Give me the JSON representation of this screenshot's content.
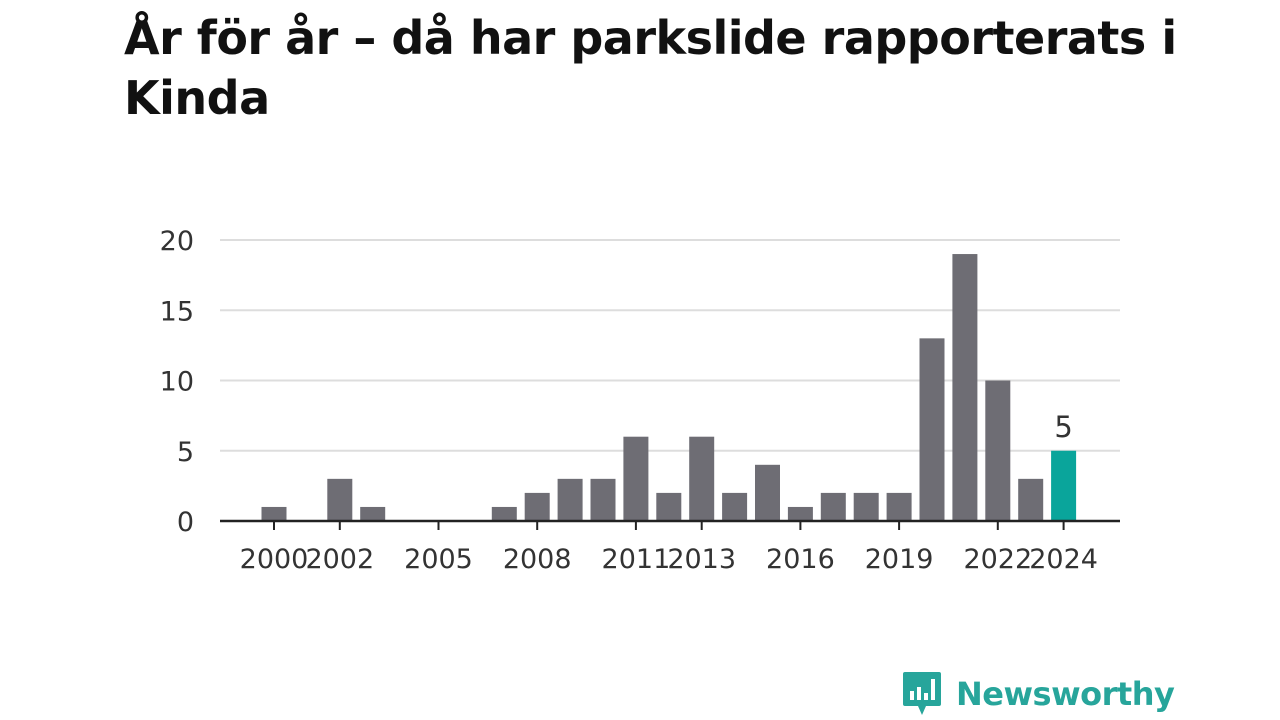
{
  "title": "År för år – då har parkslide rapporterats i Kinda",
  "brand": {
    "name": "Newsworthy",
    "icon": "bar-chart-speech-bubble-icon",
    "color": "#27a59b"
  },
  "colors": {
    "bar": "#6e6d74",
    "highlight": "#0aa59b",
    "grid": "#dddddd",
    "axis": "#222222",
    "text": "#333333"
  },
  "chart_data": {
    "type": "bar",
    "title": "År för år – då har parkslide rapporterats i Kinda",
    "xlabel": "",
    "ylabel": "",
    "categories": [
      "2000",
      "2001",
      "2002",
      "2003",
      "2004",
      "2005",
      "2006",
      "2007",
      "2008",
      "2009",
      "2010",
      "2011",
      "2012",
      "2013",
      "2014",
      "2015",
      "2016",
      "2017",
      "2018",
      "2019",
      "2020",
      "2021",
      "2022",
      "2023",
      "2024"
    ],
    "values": [
      1,
      0,
      3,
      1,
      0,
      0,
      0,
      1,
      2,
      3,
      3,
      6,
      2,
      6,
      2,
      4,
      1,
      2,
      2,
      2,
      13,
      19,
      10,
      3,
      5
    ],
    "x_tick_labels": [
      "2000",
      "2002",
      "2005",
      "2008",
      "2011",
      "2013",
      "2016",
      "2019",
      "2022",
      "2024"
    ],
    "y_ticks": [
      0,
      5,
      10,
      15,
      20
    ],
    "ylim": [
      0,
      20
    ],
    "grid": true,
    "legend": "none",
    "highlight": {
      "category": "2024",
      "label": "5"
    }
  }
}
